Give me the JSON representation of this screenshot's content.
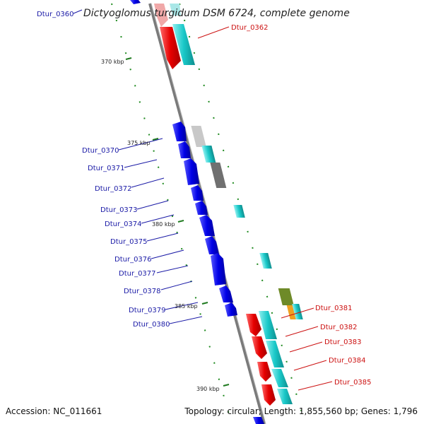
{
  "title": "Dictyoglomus turgidum DSM 6724, complete genome",
  "footer": {
    "accession": "Accession: NC_011661",
    "topology": "Topology: circular; Length: 1,855,560 bp; Genes: 1,796"
  },
  "ticks": [
    "370 kbp",
    "375 kbp",
    "380 kbp",
    "385 kbp",
    "390 kbp"
  ],
  "labels_left": [
    "Dtur_0360",
    "Dtur_0370",
    "Dtur_0371",
    "Dtur_0372",
    "Dtur_0373",
    "Dtur_0374",
    "Dtur_0375",
    "Dtur_0376",
    "Dtur_0377",
    "Dtur_0378",
    "Dtur_0379",
    "Dtur_0380"
  ],
  "labels_right": [
    "Dtur_0362",
    "Dtur_0381",
    "Dtur_0382",
    "Dtur_0383",
    "Dtur_0384",
    "Dtur_0385"
  ],
  "colors": {
    "forward_cds": "#0000e6",
    "reverse_cds": "#e60000",
    "rna_cyan": "#19c8c8",
    "backbone": "#888888",
    "tick_green": "#1f7a1f"
  }
}
